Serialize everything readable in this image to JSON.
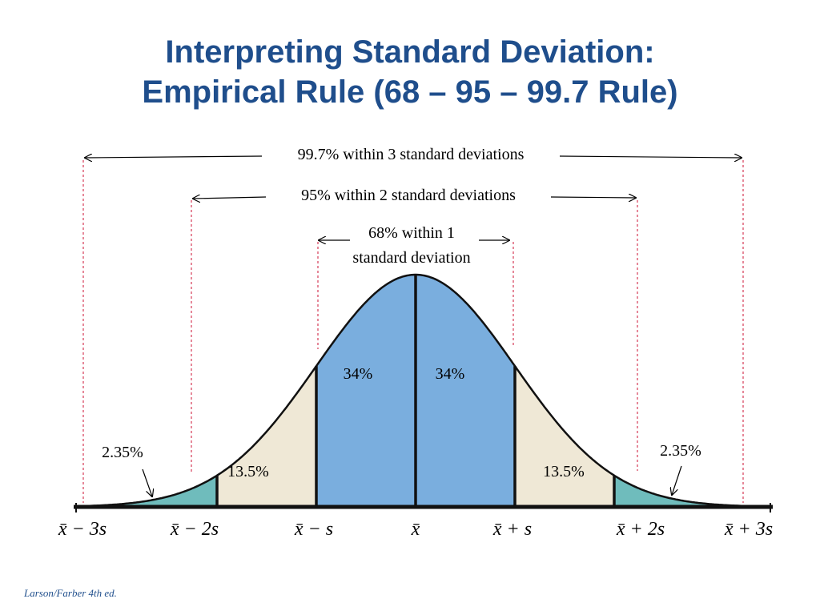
{
  "title": {
    "line1": "Interpreting Standard Deviation:",
    "line2": "Empirical Rule (68 – 95 – 99.7 Rule)"
  },
  "ranges": {
    "three_sd": "99.7% within 3 standard deviations",
    "two_sd": "95% within 2 standard deviations",
    "one_sd_line1": "68% within 1",
    "one_sd_line2": "standard deviation"
  },
  "regions": {
    "center_left": "34%",
    "center_right": "34%",
    "mid_left": "13.5%",
    "mid_right": "13.5%",
    "tail_left": "2.35%",
    "tail_right": "2.35%"
  },
  "axis_labels": {
    "minus3": "x̄ − 3s",
    "minus2": "x̄ − 2s",
    "minus1": "x̄ − s",
    "mean": "x̄",
    "plus1": "x̄ + s",
    "plus2": "x̄ + 2s",
    "plus3": "x̄ + 3s"
  },
  "colors": {
    "title": "#1f4e8c",
    "center": "#7aaede",
    "middle": "#efe8d6",
    "tail": "#6fbcbc",
    "guide": "#cc1133"
  },
  "credit": "Larson/Farber 4th ed."
}
